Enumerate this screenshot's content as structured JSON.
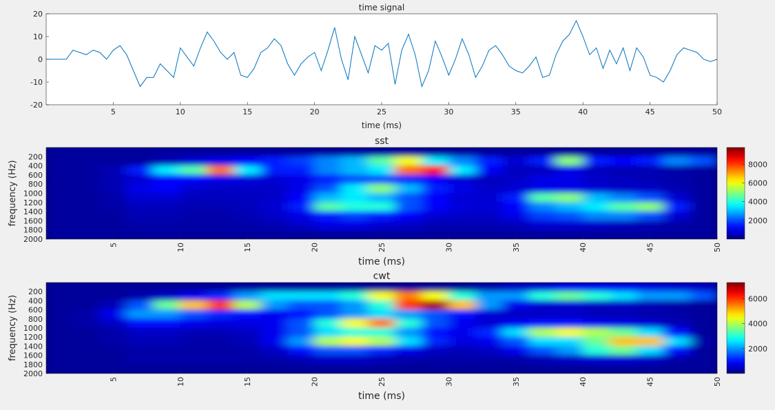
{
  "chart_data": [
    {
      "type": "line",
      "title": "time signal",
      "xlabel": "time (ms)",
      "color": "#0072bd",
      "xlim": [
        0,
        50
      ],
      "ylim": [
        -20,
        20
      ],
      "xticks": [
        5,
        10,
        15,
        20,
        25,
        30,
        35,
        40,
        45,
        50
      ],
      "yticks": [
        -20,
        -10,
        0,
        10,
        20
      ],
      "x": [
        0,
        0.5,
        1,
        1.5,
        2,
        2.5,
        3,
        3.5,
        4,
        4.5,
        5,
        5.5,
        6,
        6.5,
        7,
        7.5,
        8,
        8.5,
        9,
        9.5,
        10,
        10.5,
        11,
        11.5,
        12,
        12.5,
        13,
        13.5,
        14,
        14.5,
        15,
        15.5,
        16,
        16.5,
        17,
        17.5,
        18,
        18.5,
        19,
        19.5,
        20,
        20.5,
        21,
        21.5,
        22,
        22.5,
        23,
        23.5,
        24,
        24.5,
        25,
        25.5,
        26,
        26.5,
        27,
        27.5,
        28,
        28.5,
        29,
        29.5,
        30,
        30.5,
        31,
        31.5,
        32,
        32.5,
        33,
        33.5,
        34,
        34.5,
        35,
        35.5,
        36,
        36.5,
        37,
        37.5,
        38,
        38.5,
        39,
        39.5,
        40,
        40.5,
        41,
        41.5,
        42,
        42.5,
        43,
        43.5,
        44,
        44.5,
        45,
        45.5,
        46,
        46.5,
        47,
        47.5,
        48,
        48.5,
        49,
        49.5,
        50
      ],
      "values": [
        0,
        0,
        0,
        0,
        4,
        3,
        2,
        4,
        3,
        0,
        4,
        6,
        2,
        -5,
        -12,
        -8,
        -8,
        -2,
        -5,
        -8,
        5,
        1,
        -3,
        5,
        12,
        8,
        3,
        0,
        3,
        -7,
        -8,
        -4,
        3,
        5,
        9,
        6,
        -2,
        -7,
        -2,
        1,
        3,
        -5,
        4,
        14,
        0,
        -9,
        10,
        2,
        -6,
        6,
        4,
        7,
        -11,
        4,
        11,
        2,
        -12,
        -5,
        8,
        1,
        -7,
        0,
        9,
        2,
        -8,
        -3,
        4,
        6,
        2,
        -3,
        -5,
        -6,
        -3,
        1,
        -8,
        -7,
        2,
        8,
        11,
        17,
        10,
        2,
        5,
        -4,
        4,
        -2,
        5,
        -5,
        5,
        1,
        -7,
        -8,
        -10,
        -5,
        2,
        5,
        4,
        3,
        0,
        -1,
        0
      ]
    },
    {
      "type": "heatmap",
      "title": "sst",
      "xlabel": "time (ms)",
      "ylabel": "frequency (Hz)",
      "xlim": [
        0,
        50
      ],
      "ylim": [
        0,
        2000
      ],
      "y_reversed": true,
      "colormap": "jet",
      "xticks": [
        5,
        10,
        15,
        20,
        25,
        30,
        35,
        40,
        45,
        50
      ],
      "yticks": [
        200,
        400,
        600,
        800,
        1000,
        1200,
        1400,
        1600,
        1800,
        2000
      ],
      "x": [
        1,
        3,
        5,
        7,
        9,
        11,
        13,
        15,
        17,
        19,
        21,
        23,
        25,
        27,
        29,
        31,
        33,
        35,
        37,
        39,
        41,
        43,
        45,
        47,
        49
      ],
      "y": [
        100,
        300,
        500,
        700,
        900,
        1100,
        1300,
        1500,
        1700,
        1900
      ],
      "z": [
        [
          300,
          300,
          300,
          300,
          300,
          300,
          300,
          300,
          300,
          300,
          300,
          300,
          300,
          300,
          300,
          300,
          300,
          300,
          300,
          300,
          300,
          300,
          300,
          300,
          300
        ],
        [
          300,
          300,
          300,
          300,
          500,
          800,
          1000,
          1200,
          1500,
          1800,
          2500,
          3000,
          4500,
          6000,
          3500,
          2500,
          1500,
          800,
          1500,
          5000,
          1500,
          1200,
          1500,
          2500,
          2000
        ],
        [
          300,
          300,
          500,
          1500,
          3500,
          4500,
          7500,
          3500,
          1500,
          1500,
          2500,
          3000,
          3500,
          7500,
          8500,
          3500,
          1200,
          600,
          600,
          1000,
          600,
          500,
          500,
          400,
          300
        ],
        [
          300,
          300,
          500,
          800,
          1200,
          1200,
          1000,
          900,
          800,
          1000,
          1500,
          2000,
          2000,
          1500,
          1200,
          800,
          600,
          700,
          1000,
          1000,
          700,
          600,
          500,
          400,
          300
        ],
        [
          300,
          300,
          500,
          1000,
          1200,
          800,
          700,
          700,
          700,
          1000,
          2000,
          3500,
          5000,
          3000,
          1500,
          1000,
          700,
          800,
          1000,
          1000,
          800,
          700,
          700,
          500,
          300
        ],
        [
          300,
          300,
          400,
          800,
          800,
          600,
          600,
          600,
          700,
          1200,
          3000,
          3500,
          3000,
          2000,
          1200,
          800,
          800,
          1500,
          4500,
          5000,
          3000,
          2500,
          2000,
          800,
          300
        ],
        [
          300,
          300,
          400,
          600,
          600,
          500,
          500,
          600,
          800,
          1500,
          4500,
          4000,
          4000,
          2000,
          1200,
          900,
          800,
          1200,
          2500,
          3000,
          3500,
          4500,
          5000,
          1500,
          300
        ],
        [
          300,
          300,
          300,
          500,
          500,
          400,
          400,
          500,
          700,
          1000,
          1500,
          1800,
          1500,
          1200,
          800,
          700,
          700,
          1000,
          1800,
          2000,
          2500,
          2500,
          2000,
          800,
          300
        ],
        [
          300,
          300,
          300,
          400,
          400,
          400,
          400,
          400,
          500,
          700,
          1000,
          1000,
          800,
          700,
          500,
          500,
          500,
          600,
          800,
          800,
          700,
          600,
          500,
          400,
          300
        ],
        [
          300,
          300,
          300,
          300,
          300,
          300,
          300,
          300,
          300,
          300,
          300,
          300,
          300,
          300,
          300,
          300,
          300,
          300,
          300,
          300,
          300,
          300,
          300,
          300,
          300
        ]
      ],
      "colorbar": {
        "lim": [
          0,
          9800
        ],
        "ticks": [
          2000,
          4000,
          6000,
          8000
        ]
      }
    },
    {
      "type": "heatmap",
      "title": "cwt",
      "xlabel": "time (ms)",
      "ylabel": "frequency (Hz)",
      "xlim": [
        0,
        50
      ],
      "ylim": [
        0,
        2000
      ],
      "y_reversed": true,
      "colormap": "jet",
      "xticks": [
        5,
        10,
        15,
        20,
        25,
        30,
        35,
        40,
        45,
        50
      ],
      "yticks": [
        200,
        400,
        600,
        800,
        1000,
        1200,
        1400,
        1600,
        1800,
        2000
      ],
      "x": [
        1,
        3,
        5,
        7,
        9,
        11,
        13,
        15,
        17,
        19,
        21,
        23,
        25,
        27,
        29,
        31,
        33,
        35,
        37,
        39,
        41,
        43,
        45,
        47,
        49
      ],
      "y": [
        100,
        300,
        500,
        700,
        900,
        1100,
        1300,
        1500,
        1700,
        1900
      ],
      "z": [
        [
          200,
          200,
          200,
          200,
          200,
          200,
          200,
          200,
          200,
          200,
          200,
          200,
          200,
          200,
          200,
          200,
          300,
          500,
          600,
          800,
          800,
          800,
          700,
          600,
          500
        ],
        [
          200,
          200,
          200,
          300,
          500,
          800,
          1200,
          2000,
          2500,
          2500,
          2500,
          3000,
          4500,
          5500,
          4500,
          3000,
          2000,
          2000,
          3000,
          3500,
          3000,
          2500,
          2000,
          2000,
          1500
        ],
        [
          200,
          200,
          400,
          1500,
          3500,
          5000,
          6000,
          4000,
          2000,
          1500,
          1500,
          2000,
          3000,
          6000,
          7000,
          5000,
          2000,
          800,
          600,
          600,
          500,
          500,
          400,
          300,
          200
        ],
        [
          200,
          300,
          800,
          2000,
          2000,
          1500,
          1200,
          1000,
          800,
          1000,
          1500,
          2000,
          2500,
          2000,
          1500,
          1000,
          600,
          500,
          500,
          500,
          400,
          400,
          300,
          300,
          200
        ],
        [
          200,
          300,
          500,
          1000,
          1000,
          800,
          700,
          700,
          800,
          1500,
          3000,
          4500,
          5500,
          3000,
          1500,
          800,
          600,
          800,
          1000,
          1000,
          800,
          700,
          600,
          400,
          200
        ],
        [
          200,
          200,
          300,
          500,
          500,
          400,
          400,
          500,
          800,
          1500,
          2500,
          3000,
          3000,
          2000,
          1000,
          800,
          1200,
          2500,
          4000,
          4500,
          4000,
          3500,
          2500,
          1000,
          200
        ],
        [
          200,
          200,
          300,
          400,
          400,
          300,
          300,
          400,
          800,
          2000,
          4000,
          4500,
          4000,
          2500,
          1200,
          700,
          800,
          1500,
          2500,
          2500,
          3500,
          5000,
          5000,
          2500,
          300
        ],
        [
          200,
          200,
          200,
          300,
          300,
          300,
          300,
          300,
          500,
          1000,
          1500,
          1500,
          1200,
          800,
          500,
          400,
          500,
          800,
          1500,
          2000,
          3000,
          3500,
          2500,
          1000,
          200
        ],
        [
          200,
          200,
          200,
          300,
          300,
          300,
          300,
          300,
          300,
          400,
          500,
          500,
          400,
          300,
          300,
          300,
          300,
          300,
          400,
          500,
          600,
          600,
          500,
          300,
          200
        ],
        [
          200,
          200,
          200,
          200,
          200,
          200,
          200,
          200,
          200,
          200,
          200,
          200,
          200,
          200,
          200,
          200,
          200,
          200,
          200,
          200,
          200,
          200,
          200,
          200,
          200
        ]
      ],
      "colorbar": {
        "lim": [
          0,
          7300
        ],
        "ticks": [
          2000,
          4000,
          6000
        ]
      }
    }
  ]
}
